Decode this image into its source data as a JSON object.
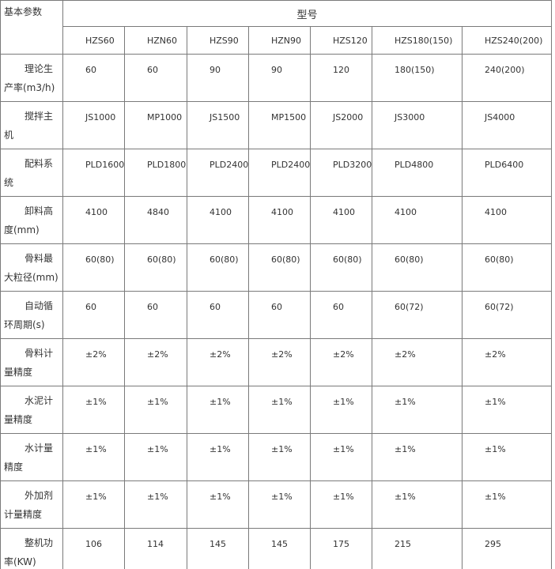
{
  "table": {
    "corner": "基本参数",
    "group_header": "型号",
    "models": [
      "HZS60",
      "HZN60",
      "HZS90",
      "HZN90",
      "HZS120",
      "HZS180(150)",
      "HZS240(200)"
    ],
    "rows": [
      {
        "label": "理论生产率(m3/h)",
        "cells": [
          "60",
          "60",
          "90",
          "90",
          "120",
          "180(150)",
          "240(200)"
        ]
      },
      {
        "label": "搅拌主机",
        "cells": [
          "JS1000",
          "MP1000",
          "JS1500",
          "MP1500",
          "JS2000",
          "JS3000",
          "JS4000"
        ]
      },
      {
        "label": "配料系统",
        "cells": [
          "PLD1600",
          "PLD1800",
          "PLD2400",
          "PLD2400",
          "PLD3200",
          "PLD4800",
          "PLD6400"
        ]
      },
      {
        "label": "卸料高度(mm)",
        "cells": [
          "4100",
          "4840",
          "4100",
          "4100",
          "4100",
          "4100",
          "4100"
        ]
      },
      {
        "label": "骨料最大粒径(mm)",
        "cells": [
          "60(80)",
          "60(80)",
          "60(80)",
          "60(80)",
          "60(80)",
          "60(80)",
          "60(80)"
        ]
      },
      {
        "label": "自动循环周期(s)",
        "cells": [
          "60",
          "60",
          "60",
          "60",
          "60",
          "60(72)",
          "60(72)"
        ]
      },
      {
        "label": "骨料计量精度",
        "cells": [
          "±2%",
          "±2%",
          "±2%",
          "±2%",
          "±2%",
          "±2%",
          "±2%"
        ]
      },
      {
        "label": "水泥计量精度",
        "cells": [
          "±1%",
          "±1%",
          "±1%",
          "±1%",
          "±1%",
          "±1%",
          "±1%"
        ]
      },
      {
        "label": "水计量精度",
        "cells": [
          "±1%",
          "±1%",
          "±1%",
          "±1%",
          "±1%",
          "±1%",
          "±1%"
        ]
      },
      {
        "label": "外加剂计量精度",
        "cells": [
          "±1%",
          "±1%",
          "±1%",
          "±1%",
          "±1%",
          "±1%",
          "±1%"
        ]
      },
      {
        "label": "整机功率(KW)",
        "cells": [
          "106",
          "114",
          "145",
          "145",
          "175",
          "215",
          "295"
        ]
      }
    ]
  }
}
